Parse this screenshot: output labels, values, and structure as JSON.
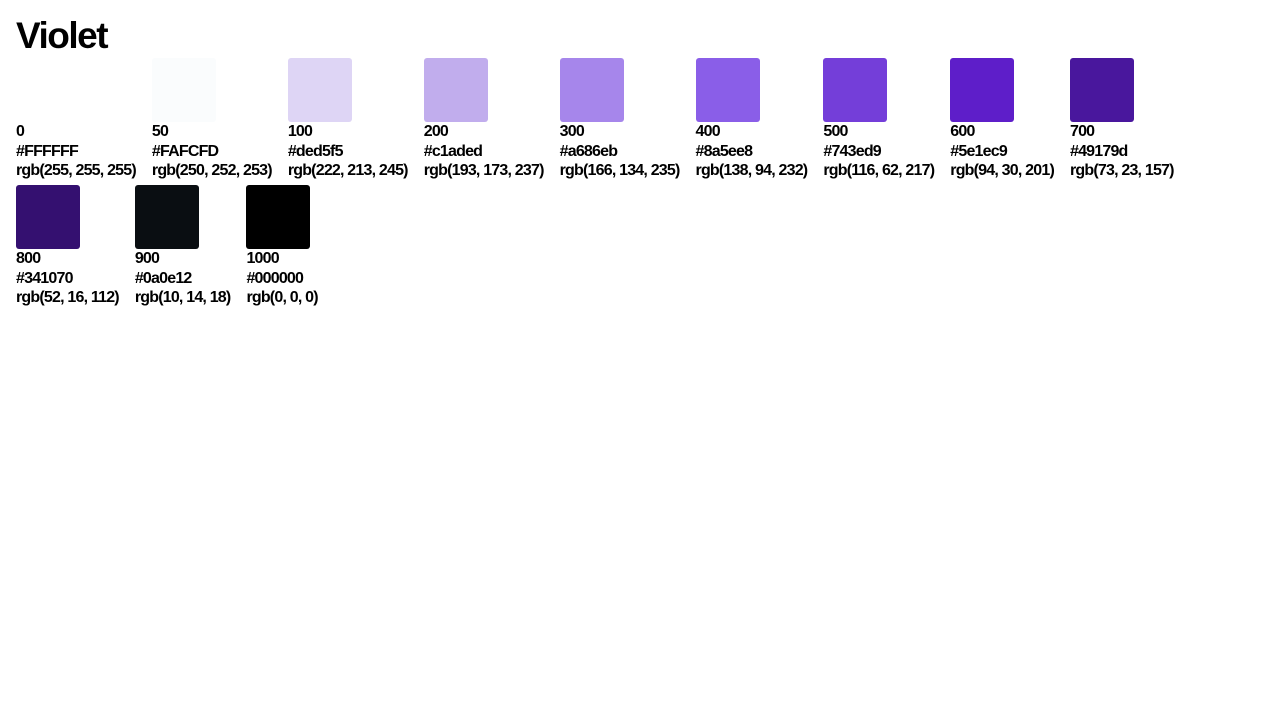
{
  "page": {
    "title": "Violet"
  },
  "rows": [
    [
      {
        "step": "0",
        "hex": "#FFFFFF",
        "rgb": "rgb(255, 255, 255)",
        "color": "#FFFFFF"
      },
      {
        "step": "50",
        "hex": "#FAFCFD",
        "rgb": "rgb(250, 252, 253)",
        "color": "#FAFCFD"
      },
      {
        "step": "100",
        "hex": "#ded5f5",
        "rgb": "rgb(222, 213, 245)",
        "color": "#ded5f5"
      },
      {
        "step": "200",
        "hex": "#c1aded",
        "rgb": "rgb(193, 173, 237)",
        "color": "#c1aded"
      },
      {
        "step": "300",
        "hex": "#a686eb",
        "rgb": "rgb(166, 134, 235)",
        "color": "#a686eb"
      },
      {
        "step": "400",
        "hex": "#8a5ee8",
        "rgb": "rgb(138, 94, 232)",
        "color": "#8a5ee8"
      },
      {
        "step": "500",
        "hex": "#743ed9",
        "rgb": "rgb(116, 62, 217)",
        "color": "#743ed9"
      },
      {
        "step": "600",
        "hex": "#5e1ec9",
        "rgb": "rgb(94, 30, 201)",
        "color": "#5e1ec9"
      },
      {
        "step": "700",
        "hex": "#49179d",
        "rgb": "rgb(73, 23, 157)",
        "color": "#49179d"
      }
    ],
    [
      {
        "step": "800",
        "hex": "#341070",
        "rgb": "rgb(52, 16, 112)",
        "color": "#341070"
      },
      {
        "step": "900",
        "hex": "#0a0e12",
        "rgb": "rgb(10, 14, 18)",
        "color": "#0a0e12"
      },
      {
        "step": "1000",
        "hex": "#000000",
        "rgb": "rgb(0, 0, 0)",
        "color": "#000000"
      }
    ]
  ]
}
